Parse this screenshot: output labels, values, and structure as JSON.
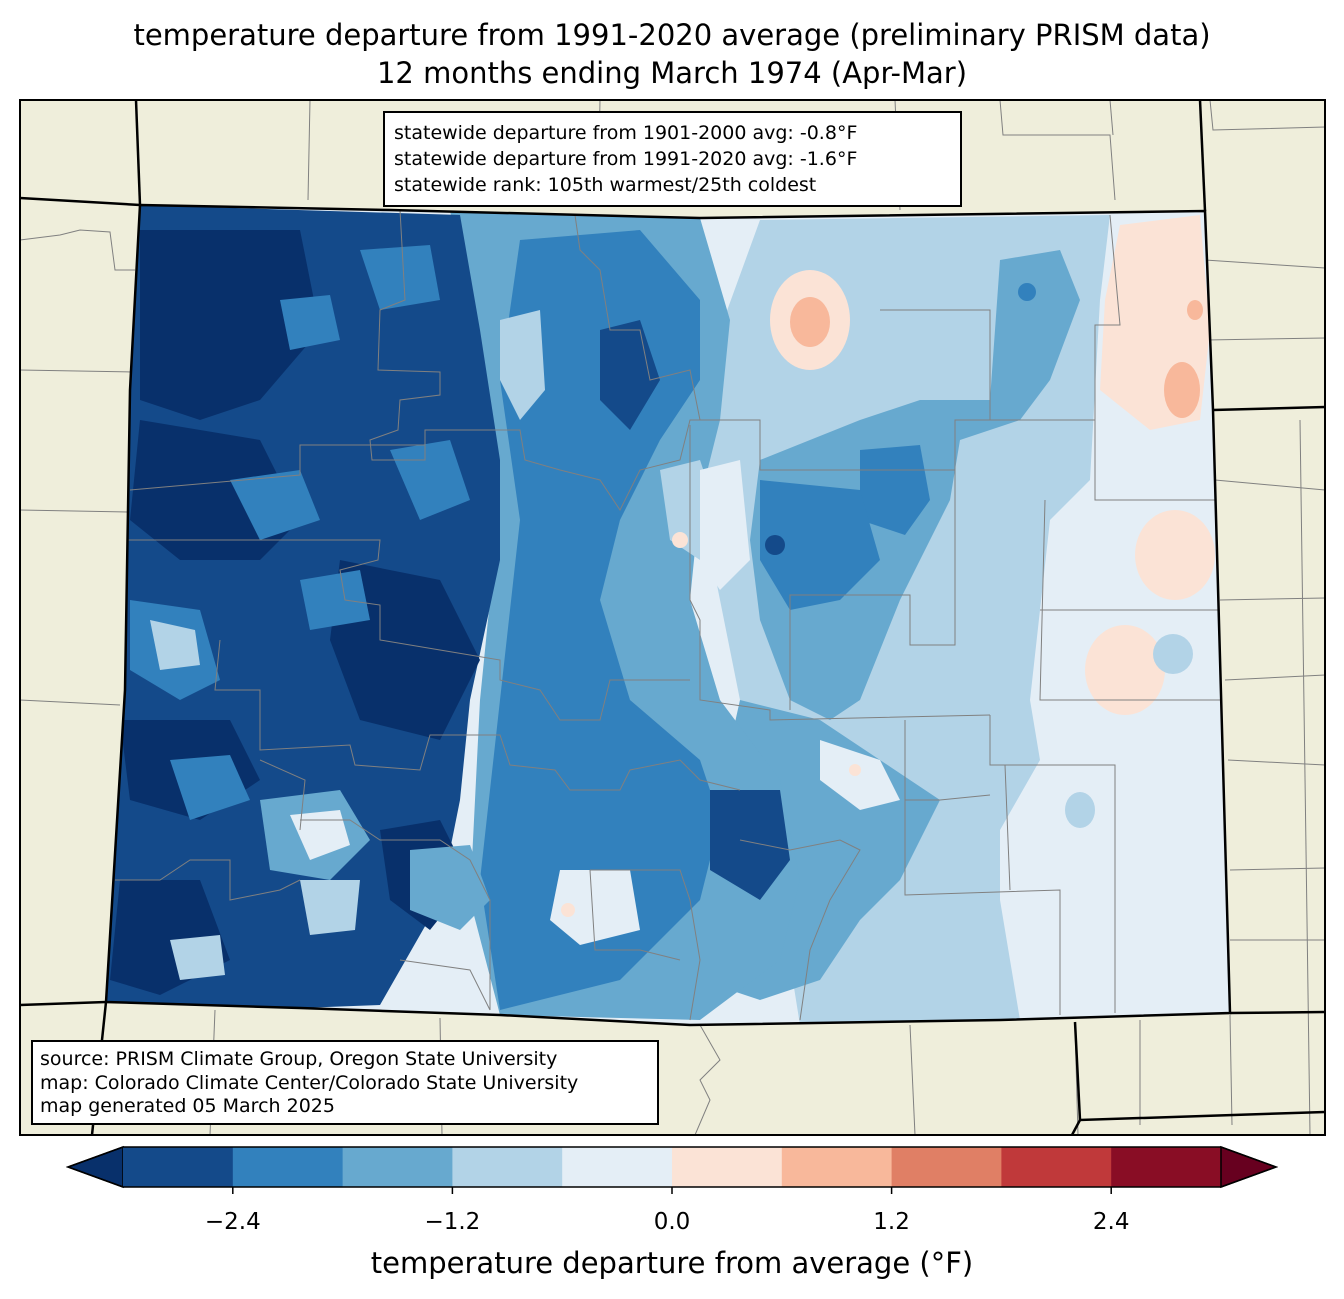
{
  "title": {
    "line1": "temperature departure from 1991-2020 average (preliminary PRISM data)",
    "line2": "12 months ending March 1974 (Apr-Mar)"
  },
  "stats": {
    "line1": "statewide departure from 1901-2000 avg: -0.8°F",
    "line2": "statewide departure from 1991-2020 avg: -1.6°F",
    "line3": "statewide rank: 105th warmest/25th coldest"
  },
  "credits": {
    "line1": "source: PRISM Climate Group, Oregon State University",
    "line2": "map: Colorado Climate Center/Colorado State University",
    "line3": "map generated 05 March 2025"
  },
  "colorbar": {
    "label": "temperature departure from average (°F)",
    "ticks": [
      {
        "value": -2.4,
        "label": "−2.4"
      },
      {
        "value": -1.2,
        "label": "−1.2"
      },
      {
        "value": 0.0,
        "label": "0.0"
      },
      {
        "value": 1.2,
        "label": "1.2"
      },
      {
        "value": 2.4,
        "label": "2.4"
      }
    ],
    "min": -3.0,
    "max": 3.0,
    "bin_colors": [
      "#144a8a",
      "#3281bd",
      "#67a9cf",
      "#b2d3e7",
      "#e4eef6",
      "#fbe3d6",
      "#f8b89b",
      "#e07f65",
      "#c0393a",
      "#890d25"
    ],
    "low_extend_color": "#08306b",
    "high_extend_color": "#67001f"
  },
  "map_colors": {
    "background": "#efeedb",
    "ocean_frame": "#000000",
    "county_lines": "#808080"
  }
}
